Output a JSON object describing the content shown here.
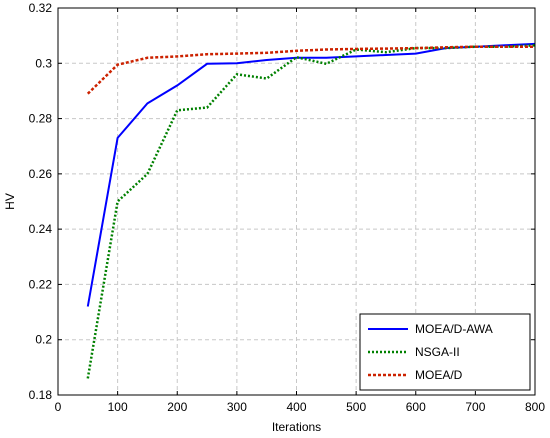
{
  "chart_data": {
    "type": "line",
    "title": "",
    "xlabel": "Iterations",
    "ylabel": "HV",
    "xlim": [
      0,
      800
    ],
    "ylim": [
      0.18,
      0.32
    ],
    "xticks": [
      0,
      100,
      200,
      300,
      400,
      500,
      600,
      700,
      800
    ],
    "xtick_labels": [
      "0",
      "100",
      "200",
      "300",
      "400",
      "500",
      "600",
      "700",
      "800"
    ],
    "yticks": [
      0.18,
      0.2,
      0.22,
      0.24,
      0.26,
      0.28,
      0.3,
      0.32
    ],
    "ytick_labels": [
      "0.18",
      "0.2",
      "0.22",
      "0.24",
      "0.26",
      "0.28",
      "0.3",
      "0.32"
    ],
    "grid": true,
    "legend_position": "bottom-right",
    "series": [
      {
        "name": "MOEA/D-AWA",
        "color": "#0000ff",
        "style": "solid",
        "x": [
          50,
          100,
          150,
          200,
          250,
          300,
          350,
          400,
          450,
          500,
          550,
          600,
          650,
          700,
          750,
          800
        ],
        "y": [
          0.212,
          0.273,
          0.2855,
          0.292,
          0.2998,
          0.3,
          0.3012,
          0.302,
          0.302,
          0.3025,
          0.303,
          0.3035,
          0.3055,
          0.306,
          0.3065,
          0.307
        ]
      },
      {
        "name": "NSGA-II",
        "color": "#008000",
        "style": "dotted",
        "x": [
          50,
          100,
          150,
          200,
          250,
          300,
          350,
          400,
          450,
          500,
          550,
          600,
          650,
          700,
          750,
          800
        ],
        "y": [
          0.186,
          0.25,
          0.26,
          0.283,
          0.284,
          0.296,
          0.2945,
          0.3022,
          0.2998,
          0.305,
          0.304,
          0.3055,
          0.3055,
          0.306,
          0.306,
          0.3065
        ]
      },
      {
        "name": "MOEA/D",
        "color": "#cc2200",
        "style": "dashed",
        "x": [
          50,
          100,
          150,
          200,
          250,
          300,
          350,
          400,
          450,
          500,
          550,
          600,
          650,
          700,
          750,
          800
        ],
        "y": [
          0.289,
          0.2995,
          0.302,
          0.3025,
          0.3033,
          0.3035,
          0.3038,
          0.3045,
          0.305,
          0.3052,
          0.3053,
          0.3055,
          0.3058,
          0.306,
          0.306,
          0.306
        ]
      }
    ]
  }
}
